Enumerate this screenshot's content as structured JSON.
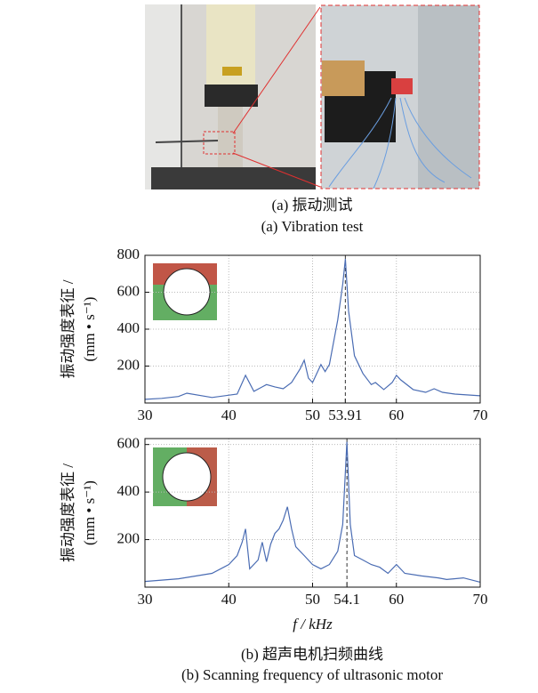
{
  "figure": {
    "caption_a_cn": "(a)  振动测试",
    "caption_a_en": "(a)  Vibration test",
    "caption_b_cn": "(b)  超声电机扫频曲线",
    "caption_b_en": "(b)  Scanning frequency of ultrasonic motor"
  },
  "chart_data": [
    {
      "type": "line",
      "ylabel": [
        "振动强度表征 /",
        "(mm • s⁻¹)"
      ],
      "x": [
        30,
        32,
        34,
        35,
        38,
        41,
        42,
        43,
        44,
        44.5,
        45.5,
        46.5,
        47.5,
        48.5,
        49,
        49.5,
        50,
        51,
        51.5,
        52,
        53,
        53.6,
        53.91,
        54.3,
        55,
        56,
        57,
        57.5,
        58.5,
        59.5,
        60,
        60.5,
        62,
        63.5,
        64.5,
        65.5,
        67,
        70
      ],
      "series": [
        {
          "color": "#4a6cb3",
          "values": [
            20,
            25,
            35,
            53,
            30,
            48,
            150,
            63,
            87,
            100,
            87,
            77,
            111,
            184,
            232,
            135,
            111,
            208,
            170,
            208,
            450,
            643,
            780,
            498,
            256,
            160,
            100,
            111,
            73,
            111,
            150,
            126,
            73,
            58,
            77,
            58,
            48,
            39
          ]
        }
      ],
      "xlim": [
        30,
        70
      ],
      "xticks": [
        30,
        40,
        50,
        53.91,
        60,
        70
      ],
      "vline": 53.91,
      "ylim": [
        0,
        800
      ],
      "yticks": [
        200,
        400,
        600,
        800
      ],
      "grid": true
    },
    {
      "type": "line",
      "ylabel": [
        "振动强度表征 /",
        "(mm • s⁻¹)"
      ],
      "xlabel": "f / kHz",
      "x": [
        30,
        34,
        38,
        40,
        41,
        41.6,
        42,
        42.5,
        43.5,
        44,
        44.5,
        45,
        45.5,
        46,
        46.5,
        47,
        47.5,
        48,
        49,
        50,
        51,
        52,
        53,
        53.6,
        54.1,
        54.5,
        55,
        56,
        57,
        58,
        59,
        60,
        61,
        63,
        65,
        66,
        68,
        70
      ],
      "series": [
        {
          "color": "#4a6cb3",
          "values": [
            24,
            35,
            58,
            95,
            133,
            189,
            245,
            77,
            114,
            189,
            107,
            181,
            226,
            245,
            282,
            338,
            245,
            170,
            133,
            95,
            77,
            95,
            151,
            264,
            611,
            264,
            133,
            114,
            95,
            84,
            58,
            95,
            58,
            47,
            39,
            32,
            39,
            21
          ]
        }
      ],
      "xlim": [
        30,
        70
      ],
      "xticks": [
        30,
        40,
        50,
        54.1,
        60,
        70
      ],
      "vline": 54.1,
      "ylim": [
        0,
        625
      ],
      "yticks": [
        200,
        400,
        600
      ],
      "grid": true
    }
  ]
}
